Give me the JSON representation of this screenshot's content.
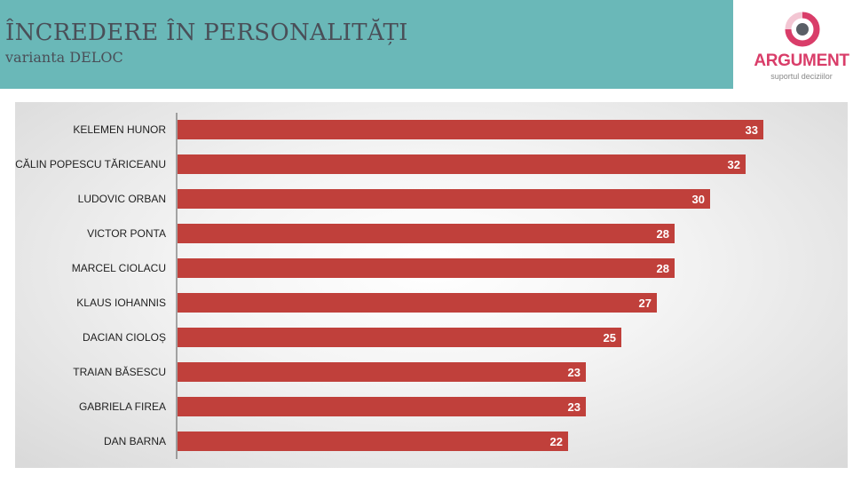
{
  "header": {
    "title": "ÎNCREDERE ÎN PERSONALITĂȚI",
    "subtitle": "varianta DELOC"
  },
  "logo": {
    "name": "ARGUMENT",
    "tagline": "suportul deciziilor"
  },
  "colors": {
    "header_band": "#6ab8b8",
    "bar": "#c0403b",
    "title_text": "#4a4f58",
    "logo_accent": "#d93d69"
  },
  "chart_data": {
    "type": "bar",
    "orientation": "horizontal",
    "categories": [
      "KELEMEN HUNOR",
      "CĂLIN POPESCU TĂRICEANU",
      "LUDOVIC ORBAN",
      "VICTOR PONTA",
      "MARCEL CIOLACU",
      "KLAUS IOHANNIS",
      "DACIAN CIOLOȘ",
      "TRAIAN BĂSESCU",
      "GABRIELA FIREA",
      "DAN BARNA"
    ],
    "values": [
      33,
      32,
      30,
      28,
      28,
      27,
      25,
      23,
      23,
      22
    ],
    "value_labels": [
      "33",
      "32",
      "30",
      "28",
      "28",
      "27",
      "25",
      "23",
      "23",
      "22"
    ],
    "xlim": [
      0,
      38
    ],
    "grid": false,
    "legend": "none"
  }
}
